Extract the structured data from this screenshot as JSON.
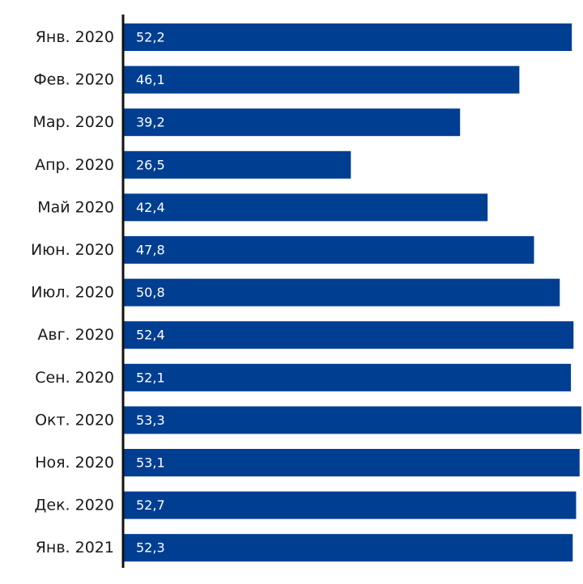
{
  "chart_data": {
    "type": "bar",
    "orientation": "horizontal",
    "categories": [
      "Янв. 2020",
      "Фев. 2020",
      "Мар. 2020",
      "Апр. 2020",
      "Май 2020",
      "Июн. 2020",
      "Июл. 2020",
      "Авг. 2020",
      "Сен. 2020",
      "Окт. 2020",
      "Ноя. 2020",
      "Дек. 2020",
      "Янв. 2021"
    ],
    "values": [
      52.2,
      46.1,
      39.2,
      26.5,
      42.4,
      47.8,
      50.8,
      52.4,
      52.1,
      53.3,
      53.1,
      52.7,
      52.3
    ],
    "value_labels": [
      "52,2",
      "46,1",
      "39,2",
      "26,5",
      "42,4",
      "47,8",
      "50,8",
      "52,4",
      "52,1",
      "53,3",
      "53,1",
      "52,7",
      "52,3"
    ],
    "title": "",
    "xlabel": "",
    "ylabel": "",
    "xlim": [
      0,
      53.5
    ],
    "grid": false,
    "legend": "none",
    "colors": {
      "bar": "#003e92",
      "axis": "#111111",
      "category_text": "#1a1a1a",
      "value_text": "#ffffff"
    }
  }
}
